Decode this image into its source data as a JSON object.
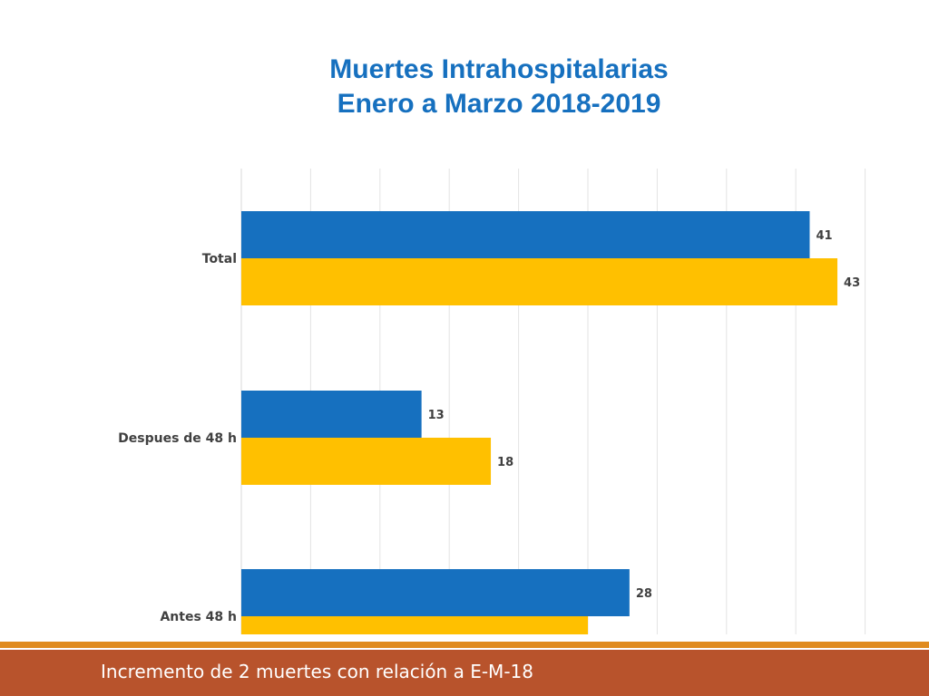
{
  "title_lines": [
    "Muertes Intrahospitalarias",
    "Enero a Marzo 2018-2019"
  ],
  "footer_text": "Incremento de 2 muertes con relación a E-M-18",
  "colors": {
    "series_blue": "#1670BF",
    "series_yellow": "#FFC000",
    "title": "#1670BF",
    "footer_bar": "#B8532C",
    "footer_rule": "#E08A1E"
  },
  "chart_data": {
    "type": "bar",
    "orientation": "horizontal",
    "title": "Muertes Intrahospitalarias Enero a Marzo 2018-2019",
    "categories": [
      "Total",
      "Despues de 48 h",
      "Antes 48 h"
    ],
    "series": [
      {
        "values": [
          41,
          13,
          28
        ],
        "color": "#1670BF"
      },
      {
        "values": [
          43,
          18,
          25
        ],
        "color": "#FFC000"
      }
    ],
    "data_labels": [
      [
        "41",
        "13",
        "28"
      ],
      [
        "43",
        "18",
        ""
      ]
    ],
    "xlim": [
      0,
      45
    ],
    "grid": true,
    "legend": "none"
  }
}
